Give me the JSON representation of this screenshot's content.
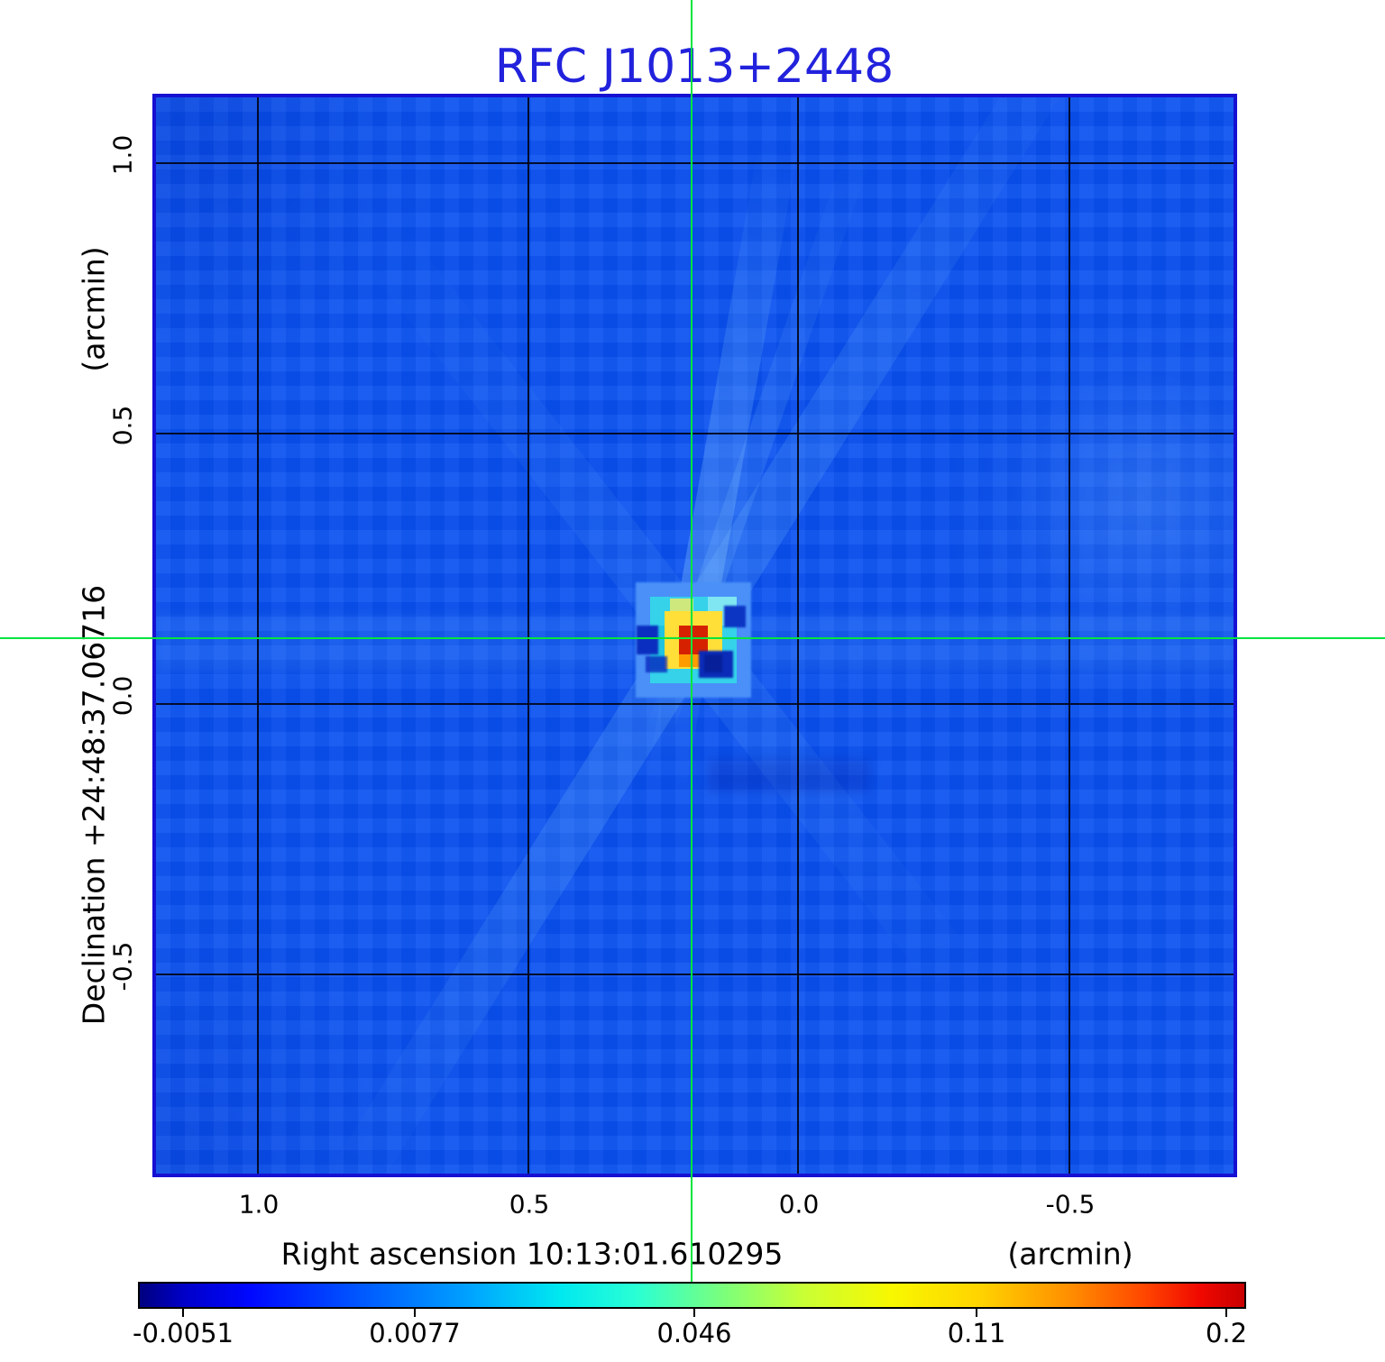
{
  "figure": {
    "title": "RFC J1013+2448",
    "title_color": "#2222dd",
    "accent_green": "#00e53e",
    "map_base_color": "#0951f0"
  },
  "axes": {
    "y_unit_label": "(arcmin)",
    "y_axis_label": "Declination  +24:48:37.06716",
    "x_axis_label": "Right ascension  10:13:01.610295",
    "x_unit_label": "(arcmin)",
    "x_tick_labels": [
      "1.0",
      "0.5",
      "0.0",
      "-0.5"
    ],
    "y_tick_labels": [
      "1.0",
      "0.5",
      "0.0",
      "-0.5"
    ]
  },
  "colorbar": {
    "colormap": "jet",
    "tick_labels": [
      "-0.0051",
      "0.0077",
      "0.046",
      "0.11",
      "0.2"
    ]
  },
  "chart_data": {
    "type": "heatmap",
    "title": "RFC J1013+2448",
    "xlabel": "Right ascension  10:13:01.610295 (arcmin)",
    "ylabel": "Declination  +24:48:37.06716 (arcmin)",
    "x_ticks_arcmin": [
      1.0,
      0.5,
      0.0,
      -0.5
    ],
    "y_ticks_arcmin": [
      1.0,
      0.5,
      0.0,
      -0.5
    ],
    "x_range_arcmin": [
      1.19,
      -0.81
    ],
    "y_range_arcmin": [
      -0.875,
      1.125
    ],
    "grid": true,
    "colormap": "jet",
    "colorbar_ticks": [
      -0.0051,
      0.0077,
      0.046,
      0.11,
      0.2
    ],
    "colorbar_range": [
      -0.0051,
      0.2
    ],
    "background_level": 0.004,
    "source": {
      "description": "single compact bright source with jet-colormap core (red peak, yellow and cyan rings, pale blue halo) surrounded by small negative (dark navy) sidelobes and faint diagonal dirty-beam rays",
      "peak_x_arcmin": 0.2,
      "peak_y_arcmin": 0.12,
      "peak_value": 0.2
    },
    "crosshair": {
      "color": "#00e53e",
      "x_arcmin": 0.2,
      "y_arcmin": 0.12,
      "note": "green crosshair through source position extends across full figure"
    },
    "legend_position": "bottom horizontal colorbar"
  }
}
